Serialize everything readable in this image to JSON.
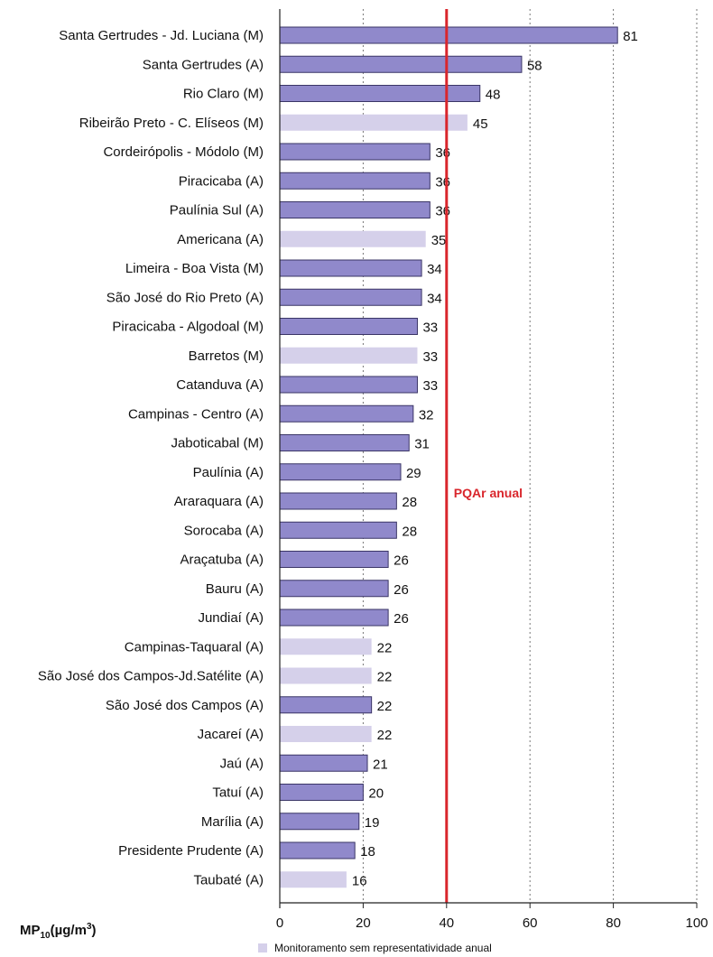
{
  "chart_data": {
    "type": "bar",
    "orientation": "horizontal",
    "categories": [
      "Santa Gertrudes - Jd. Luciana (M)",
      "Santa Gertrudes (A)",
      "Rio Claro (M)",
      "Ribeirão Preto - C. Elíseos (M)",
      "Cordeirópolis - Módolo (M)",
      "Piracicaba (A)",
      "Paulínia Sul (A)",
      "Americana (A)",
      "Limeira - Boa Vista (M)",
      "São José do Rio Preto (A)",
      "Piracicaba - Algodoal (M)",
      "Barretos (M)",
      "Catanduva (A)",
      "Campinas - Centro (A)",
      "Jaboticabal (M)",
      "Paulínia (A)",
      "Araraquara (A)",
      "Sorocaba (A)",
      "Araçatuba (A)",
      "Bauru (A)",
      "Jundiaí (A)",
      "Campinas-Taquaral (A)",
      "São José dos Campos-Jd.Satélite (A)",
      "São José dos Campos (A)",
      "Jacareí (A)",
      "Jaú (A)",
      "Tatuí (A)",
      "Marília (A)",
      "Presidente Prudente (A)",
      "Taubaté (A)"
    ],
    "values": [
      81,
      58,
      48,
      45,
      36,
      36,
      36,
      35,
      34,
      34,
      33,
      33,
      33,
      32,
      31,
      29,
      28,
      28,
      26,
      26,
      26,
      22,
      22,
      22,
      22,
      21,
      20,
      19,
      18,
      16
    ],
    "representative": [
      true,
      true,
      true,
      false,
      true,
      true,
      true,
      false,
      true,
      true,
      true,
      false,
      true,
      true,
      true,
      true,
      true,
      true,
      true,
      true,
      true,
      false,
      false,
      true,
      false,
      true,
      true,
      true,
      true,
      false
    ],
    "x_ticks": [
      "0",
      "20",
      "40",
      "60",
      "80",
      "100"
    ],
    "xlim": [
      0,
      100
    ],
    "grid": "vertical dotted",
    "reference_line": {
      "value": 40,
      "label": "PQAr anual"
    },
    "colors": {
      "representative": "#9089cb",
      "non_representative": "#d5d0ea",
      "reference_line": "#d9262c",
      "bar_border": "#3a3566"
    }
  },
  "unit_label": {
    "base": "MP",
    "sub": "10",
    "open": "(µg/m",
    "sup": "3",
    "close": ")"
  },
  "legend": {
    "label": "Monitoramento sem representatividade anual",
    "position": "bottom"
  }
}
